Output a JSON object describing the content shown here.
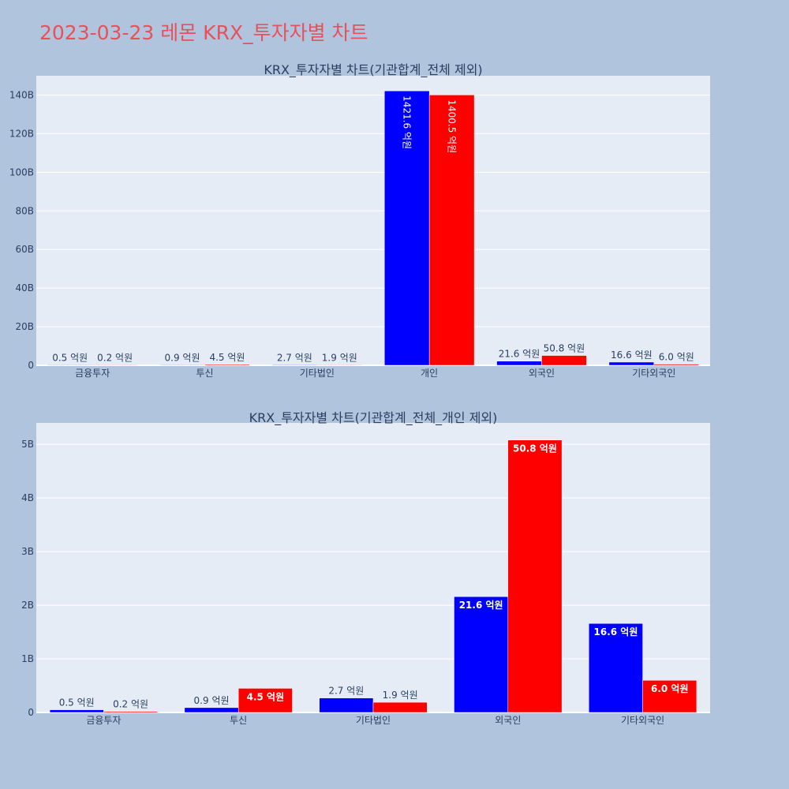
{
  "title": "2023-03-23 레몬 KRX_투자자별 차트",
  "chart_data": [
    {
      "type": "bar",
      "title": "KRX_투자자별 차트(기관합계_전체 제외)",
      "categories": [
        "금융투자",
        "투신",
        "기타법인",
        "개인",
        "외국인",
        "기타외국인"
      ],
      "series": [
        {
          "color": "#0000ff",
          "values": [
            0.05,
            0.09,
            0.27,
            142.16,
            2.16,
            1.66
          ],
          "labels": [
            "0.5 억원",
            "0.9 억원",
            "2.7 억원",
            "1421.6 억원",
            "21.6 억원",
            "16.6 억원"
          ]
        },
        {
          "color": "#ff0000",
          "values": [
            0.02,
            0.45,
            0.19,
            140.05,
            5.08,
            0.6
          ],
          "labels": [
            "0.2 억원",
            "4.5 억원",
            "1.9 억원",
            "1400.5 억원",
            "50.8 억원",
            "6.0 억원"
          ]
        }
      ],
      "value_unit": "B",
      "ylim": [
        0,
        150
      ],
      "yticks": [
        0,
        20,
        40,
        60,
        80,
        100,
        120,
        140
      ],
      "ytick_labels": [
        "0",
        "20B",
        "40B",
        "60B",
        "80B",
        "100B",
        "120B",
        "140B"
      ],
      "grid": true,
      "legend": "none"
    },
    {
      "type": "bar",
      "title": "KRX_투자자별 차트(기관합계_전체_개인 제외)",
      "categories": [
        "금융투자",
        "투신",
        "기타법인",
        "외국인",
        "기타외국인"
      ],
      "series": [
        {
          "color": "#0000ff",
          "values": [
            0.05,
            0.09,
            0.27,
            2.16,
            1.66
          ],
          "labels": [
            "0.5 억원",
            "0.9 억원",
            "2.7 억원",
            "21.6 억원",
            "16.6 억원"
          ]
        },
        {
          "color": "#ff0000",
          "values": [
            0.02,
            0.45,
            0.19,
            5.08,
            0.6
          ],
          "labels": [
            "0.2 억원",
            "4.5 억원",
            "1.9 억원",
            "50.8 억원",
            "6.0 억원"
          ]
        }
      ],
      "value_unit": "B",
      "ylim": [
        0,
        5.4
      ],
      "yticks": [
        0,
        1,
        2,
        3,
        4,
        5
      ],
      "ytick_labels": [
        "0",
        "1B",
        "2B",
        "3B",
        "4B",
        "5B"
      ],
      "grid": true,
      "legend": "none"
    }
  ]
}
